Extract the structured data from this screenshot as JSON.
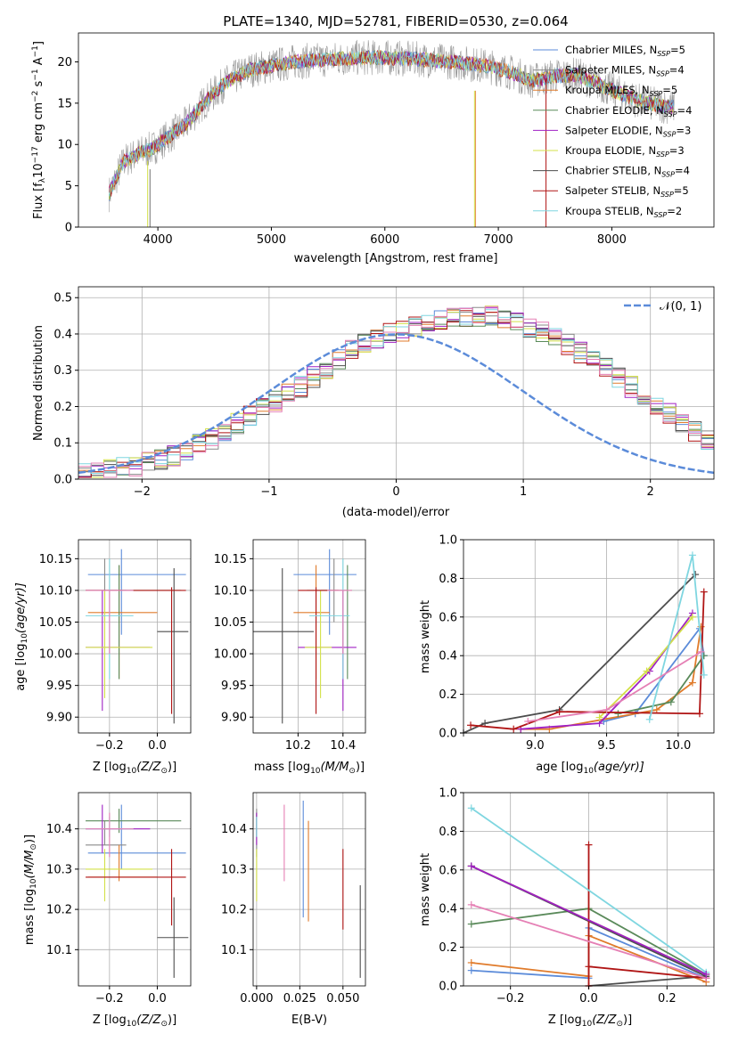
{
  "title": "PLATE=1340, MJD=52781, FIBERID=0530, z=0.064",
  "colors": {
    "Chabrier MILES": "#5b8bd9",
    "Salpeter MILES": "#8a8a8a",
    "Kroupa MILES": "#e07b2b",
    "Chabrier ELODIE": "#5a8a5a",
    "Salpeter ELODIE": "#a021c4",
    "Kroupa ELODIE": "#d3e048",
    "Chabrier STELIB": "#4d4d4d",
    "Salpeter STELIB": "#b01515",
    "Kroupa STELIB": "#7fd6e0",
    "pink": "#e580b5",
    "normal": "#5b8bd9"
  },
  "chart_data": [
    {
      "id": "spectrum",
      "type": "line",
      "xlabel": "wavelength [Angstrom, rest frame]",
      "ylabel_main": "Flux [f",
      "ylabel_rest": "10",
      "ylabel_unit": " erg cm",
      "ylabel_unit2": " s",
      "ylabel_unit3": " A",
      "ylabel_sub": "λ",
      "ylabel_exp1": "−17",
      "ylabel_exp2": "−2",
      "ylabel_exp3": "−1",
      "ylabel_close": "]",
      "xlim": [
        3300,
        8900
      ],
      "ylim": [
        0,
        23.5
      ],
      "xticks": [
        4000,
        5000,
        6000,
        7000,
        8000
      ],
      "yticks": [
        0,
        5,
        10,
        15,
        20
      ],
      "legend_position": "top-right",
      "legend": [
        {
          "label": "Chabrier MILES, N",
          "sub": "SSP",
          "val": "=5"
        },
        {
          "label": "Salpeter MILES, N",
          "sub": "SSP",
          "val": "=4"
        },
        {
          "label": "Kroupa MILES, N",
          "sub": "SSP",
          "val": "=5"
        },
        {
          "label": "Chabrier ELODIE, N",
          "sub": "SSP",
          "val": "=4"
        },
        {
          "label": "Salpeter ELODIE, N",
          "sub": "SSP",
          "val": "=3"
        },
        {
          "label": "Kroupa ELODIE, N",
          "sub": "SSP",
          "val": "=3"
        },
        {
          "label": "Chabrier STELIB, N",
          "sub": "SSP",
          "val": "=4"
        },
        {
          "label": "Salpeter STELIB, N",
          "sub": "SSP",
          "val": "=5"
        },
        {
          "label": "Kroupa STELIB, N",
          "sub": "SSP",
          "val": "=2"
        }
      ],
      "continuum": [
        [
          3570,
          4
        ],
        [
          3700,
          8
        ],
        [
          3850,
          9
        ],
        [
          3950,
          9.5
        ],
        [
          4100,
          11
        ],
        [
          4250,
          12.5
        ],
        [
          4400,
          15
        ],
        [
          4600,
          17.5
        ],
        [
          4800,
          19
        ],
        [
          5000,
          19.5
        ],
        [
          5200,
          20
        ],
        [
          5500,
          20.3
        ],
        [
          5800,
          20.5
        ],
        [
          6000,
          20.5
        ],
        [
          6300,
          20.3
        ],
        [
          6600,
          20
        ],
        [
          6900,
          19.5
        ],
        [
          7100,
          18.8
        ],
        [
          7300,
          17.7
        ],
        [
          7500,
          18.3
        ],
        [
          7700,
          18.4
        ],
        [
          7900,
          17.2
        ],
        [
          8100,
          16
        ],
        [
          8300,
          15
        ],
        [
          8400,
          14.8
        ],
        [
          8550,
          14.5
        ]
      ]
    },
    {
      "id": "residuals",
      "type": "histogram",
      "xlabel": "(data-model)/error",
      "ylabel": "Normed distribution",
      "xlim": [
        -2.5,
        2.5
      ],
      "ylim": [
        0,
        0.53
      ],
      "xticks": [
        -2,
        -1,
        0,
        1,
        2
      ],
      "yticks": [
        0.0,
        0.1,
        0.2,
        0.3,
        0.4,
        0.5
      ],
      "legend_label": "𝒩(0, 1)",
      "legend_position": "top-right",
      "bin_width": 0.1,
      "bin_start": -2.5,
      "base": [
        0.015,
        0.02,
        0.025,
        0.03,
        0.035,
        0.045,
        0.055,
        0.065,
        0.08,
        0.095,
        0.11,
        0.13,
        0.155,
        0.175,
        0.195,
        0.215,
        0.235,
        0.255,
        0.28,
        0.305,
        0.33,
        0.355,
        0.375,
        0.39,
        0.4,
        0.41,
        0.42,
        0.43,
        0.44,
        0.445,
        0.45,
        0.45,
        0.45,
        0.44,
        0.43,
        0.42,
        0.405,
        0.39,
        0.37,
        0.35,
        0.33,
        0.305,
        0.28,
        0.255,
        0.23,
        0.205,
        0.18,
        0.155,
        0.13,
        0.11
      ]
    },
    {
      "id": "age_vs_Z",
      "type": "errorbar",
      "xlabel": "Z [log",
      "xlabel_sub": "10",
      "xlabel_rest": "(Z/Z",
      "xlabel_sun": "⊙",
      "xlabel_close": ")]",
      "ylabel": "age  [log",
      "ylabel_sub": "10",
      "ylabel_rest": "(age/yr)]",
      "xlim": [
        -0.33,
        0.14
      ],
      "ylim": [
        9.875,
        10.18
      ],
      "xticks": [
        -0.2,
        0.0
      ],
      "yticks": [
        9.9,
        9.95,
        10.0,
        10.05,
        10.1,
        10.15
      ]
    },
    {
      "id": "age_vs_mass",
      "type": "errorbar",
      "xlabel": "mass [log",
      "xlabel_sub": "10",
      "xlabel_rest": "(M/M",
      "xlabel_sun": "⊙",
      "xlabel_close": ")]",
      "xlim": [
        10.0,
        10.5
      ],
      "ylim": [
        9.875,
        10.18
      ],
      "xticks": [
        10.2,
        10.4
      ],
      "yticks": [
        9.9,
        9.95,
        10.0,
        10.05,
        10.1,
        10.15
      ]
    },
    {
      "id": "weight_vs_age",
      "type": "line",
      "xlabel": "age  [log",
      "xlabel_sub": "10",
      "xlabel_rest": "(age/yr)]",
      "ylabel": "mass weight",
      "xlim": [
        8.5,
        10.25
      ],
      "ylim": [
        0,
        1.0
      ],
      "xticks": [
        9.0,
        9.5,
        10.0
      ],
      "yticks": [
        0.0,
        0.2,
        0.4,
        0.6,
        0.8,
        1.0
      ]
    },
    {
      "id": "mass_vs_Z",
      "type": "errorbar",
      "xlabel": "Z [log",
      "xlabel_sub": "10",
      "xlabel_rest": "(Z/Z",
      "xlabel_sun": "⊙",
      "xlabel_close": ")]",
      "ylabel": "mass [log",
      "ylabel_sub": "10",
      "ylabel_rest": "(M/M",
      "ylabel_sun": "⊙",
      "ylabel_close": ")]",
      "xlim": [
        -0.33,
        0.14
      ],
      "ylim": [
        10.01,
        10.49
      ],
      "xticks": [
        -0.2,
        0.0
      ],
      "yticks": [
        10.1,
        10.2,
        10.3,
        10.4
      ]
    },
    {
      "id": "mass_vs_ebv",
      "type": "errorbar",
      "xlabel": "E(B-V)",
      "xlim": [
        -0.002,
        0.063
      ],
      "ylim": [
        10.01,
        10.49
      ],
      "xticks": [
        0.0,
        0.025,
        0.05
      ],
      "yticks": [
        10.1,
        10.2,
        10.3,
        10.4
      ]
    },
    {
      "id": "weight_vs_Z",
      "type": "line",
      "xlabel": "Z [log",
      "xlabel_sub": "10",
      "xlabel_rest": "(Z/Z",
      "xlabel_sun": "⊙",
      "xlabel_close": ")]",
      "ylabel": "mass weight",
      "xlim": [
        -0.32,
        0.32
      ],
      "ylim": [
        0,
        1.0
      ],
      "xticks": [
        -0.2,
        0.0,
        0.2
      ],
      "yticks": [
        0.0,
        0.2,
        0.4,
        0.6,
        0.8,
        1.0
      ]
    }
  ],
  "points": [
    {
      "c": "#5b8bd9",
      "Z": -0.15,
      "zl": -0.29,
      "zh": 0.12,
      "age": 10.125,
      "al": 10.03,
      "ah": 10.165,
      "m": 10.34,
      "ml": 10.18,
      "mh": 10.46,
      "mzl": -0.29,
      "mzh": 0.12,
      "mml": 10.3,
      "mmh": 10.46,
      "ebv": 0.027,
      "el": 10.18,
      "eh": 10.47
    },
    {
      "c": "#8a8a8a",
      "Z": -0.22,
      "zl": -0.3,
      "zh": -0.13,
      "age": 10.1,
      "al": 10.05,
      "ah": 10.15,
      "m": 10.36,
      "ml": 10.3,
      "mh": 10.44,
      "mzl": -0.3,
      "mzh": -0.13,
      "mml": 10.36,
      "mmh": 10.42,
      "ebv": 0.0,
      "el": 10.33,
      "eh": 10.45
    },
    {
      "c": "#e07b2b",
      "Z": -0.16,
      "zl": -0.29,
      "zh": 0.0,
      "age": 10.065,
      "al": 9.96,
      "ah": 10.14,
      "m": 10.28,
      "ml": 10.18,
      "mh": 10.34,
      "mzl": -0.29,
      "mzh": 0.0,
      "mml": 10.27,
      "mmh": 10.36,
      "ebv": 0.03,
      "el": 10.17,
      "eh": 10.42
    },
    {
      "c": "#5a8a5a",
      "Z": -0.16,
      "zl": -0.3,
      "zh": 0.1,
      "age": 10.1,
      "al": 9.96,
      "ah": 10.14,
      "m": 10.42,
      "ml": 10.24,
      "mh": 10.42,
      "mzl": -0.3,
      "mzh": 0.1,
      "mml": 10.39,
      "mmh": 10.45,
      "ebv": 0.0,
      "el": 10.38,
      "eh": 10.44
    },
    {
      "c": "#a021c4",
      "Z": -0.23,
      "zl": -0.3,
      "zh": -0.03,
      "age": 10.01,
      "al": 9.91,
      "ah": 10.1,
      "m": 10.4,
      "ml": 10.2,
      "mh": 10.46,
      "mzl": -0.3,
      "mzh": -0.03,
      "mml": 10.34,
      "mmh": 10.46,
      "ebv": 0.0,
      "el": 10.36,
      "eh": 10.44
    },
    {
      "c": "#d3e048",
      "Z": -0.22,
      "zl": -0.3,
      "zh": -0.02,
      "age": 10.01,
      "al": 9.93,
      "ah": 10.1,
      "m": 10.3,
      "ml": 10.23,
      "mh": 10.35,
      "mzl": -0.3,
      "mzh": -0.02,
      "mml": 10.22,
      "mmh": 10.35,
      "ebv": 0.0,
      "el": 10.22,
      "eh": 10.35
    },
    {
      "c": "#4d4d4d",
      "Z": 0.07,
      "zl": 0.0,
      "zh": 0.13,
      "age": 10.035,
      "al": 9.89,
      "ah": 10.135,
      "m": 10.13,
      "ml": 10.0,
      "mh": 10.27,
      "mzl": 0.0,
      "mzh": 0.13,
      "mml": 10.03,
      "mmh": 10.23,
      "ebv": 0.06,
      "el": 10.03,
      "eh": 10.26
    },
    {
      "c": "#b01515",
      "Z": 0.06,
      "zl": -0.3,
      "zh": 0.12,
      "age": 10.1,
      "al": 9.905,
      "ah": 10.105,
      "m": 10.28,
      "ml": 10.2,
      "mh": 10.38,
      "mzl": -0.3,
      "mzh": 0.12,
      "mml": 10.16,
      "mmh": 10.35,
      "ebv": 0.05,
      "el": 10.15,
      "eh": 10.35
    },
    {
      "c": "#7fd6e0",
      "Z": -0.2,
      "zl": -0.3,
      "zh": -0.1,
      "age": 10.06,
      "al": 9.96,
      "ah": 10.15,
      "m": 10.4,
      "ml": 10.25,
      "mh": 10.43,
      "mzl": -0.3,
      "mzh": -0.1,
      "mml": 10.38,
      "mmh": 10.43,
      "ebv": 0.0,
      "el": 10.38,
      "eh": 10.43
    },
    {
      "c": "#e580b5",
      "Z": -0.2,
      "zl": -0.3,
      "zh": -0.1,
      "age": 10.1,
      "al": 10.0,
      "ah": 10.1,
      "m": 10.4,
      "ml": 10.33,
      "mh": 10.44,
      "mzl": -0.3,
      "mzh": -0.1,
      "mml": 10.33,
      "mmh": 10.44,
      "ebv": 0.016,
      "el": 10.27,
      "eh": 10.46
    }
  ],
  "weights_age": [
    {
      "c": "#5b8bd9",
      "pts": [
        [
          9.48,
          0.06
        ],
        [
          9.7,
          0.1
        ],
        [
          10.15,
          0.54
        ],
        [
          10.18,
          0.4
        ]
      ]
    },
    {
      "c": "#e07b2b",
      "pts": [
        [
          8.9,
          0.02
        ],
        [
          9.1,
          0.02
        ],
        [
          9.85,
          0.12
        ],
        [
          10.1,
          0.26
        ],
        [
          10.16,
          0.55
        ]
      ]
    },
    {
      "c": "#5a8a5a",
      "pts": [
        [
          9.58,
          0.1
        ],
        [
          9.95,
          0.16
        ],
        [
          10.18,
          0.4
        ]
      ]
    },
    {
      "c": "#a021c4",
      "pts": [
        [
          8.9,
          0.02
        ],
        [
          9.45,
          0.05
        ],
        [
          9.8,
          0.32
        ],
        [
          10.1,
          0.62
        ]
      ]
    },
    {
      "c": "#d3e048",
      "pts": [
        [
          9.45,
          0.08
        ],
        [
          9.78,
          0.32
        ],
        [
          10.1,
          0.6
        ]
      ]
    },
    {
      "c": "#4d4d4d",
      "pts": [
        [
          8.5,
          0.0
        ],
        [
          8.65,
          0.05
        ],
        [
          9.17,
          0.12
        ],
        [
          10.12,
          0.82
        ]
      ]
    },
    {
      "c": "#b01515",
      "pts": [
        [
          8.55,
          0.04
        ],
        [
          8.85,
          0.02
        ],
        [
          9.17,
          0.11
        ],
        [
          10.15,
          0.1
        ],
        [
          10.18,
          0.73
        ]
      ]
    },
    {
      "c": "#7fd6e0",
      "pts": [
        [
          9.8,
          0.07
        ],
        [
          10.1,
          0.92
        ],
        [
          10.18,
          0.3
        ]
      ]
    },
    {
      "c": "#e580b5",
      "pts": [
        [
          8.95,
          0.06
        ],
        [
          9.5,
          0.12
        ],
        [
          10.16,
          0.42
        ]
      ]
    }
  ],
  "weights_Z": [
    {
      "c": "#5b8bd9",
      "pts": [
        [
          -0.3,
          0.08
        ],
        [
          0.0,
          0.04
        ],
        [
          0.0,
          0.3
        ],
        [
          0.3,
          0.04
        ]
      ]
    },
    {
      "c": "#e07b2b",
      "pts": [
        [
          -0.3,
          0.12
        ],
        [
          0.0,
          0.05
        ],
        [
          0.0,
          0.26
        ],
        [
          0.3,
          0.02
        ]
      ]
    },
    {
      "c": "#5a8a5a",
      "pts": [
        [
          -0.3,
          0.32
        ],
        [
          0.0,
          0.4
        ],
        [
          0.3,
          0.06
        ]
      ]
    },
    {
      "c": "#d3e048",
      "pts": [
        [
          -0.3,
          0.62
        ],
        [
          0.3,
          0.06
        ]
      ]
    },
    {
      "c": "#4d4d4d",
      "pts": [
        [
          -0.3,
          0.62
        ],
        [
          0.3,
          0.05
        ],
        [
          0.0,
          0.0
        ]
      ]
    },
    {
      "c": "#b01515",
      "pts": [
        [
          0.0,
          0.0
        ],
        [
          0.0,
          0.73
        ],
        [
          0.0,
          0.1
        ],
        [
          0.3,
          0.04
        ]
      ]
    },
    {
      "c": "#7fd6e0",
      "pts": [
        [
          -0.3,
          0.92
        ],
        [
          0.3,
          0.07
        ]
      ]
    },
    {
      "c": "#e580b5",
      "pts": [
        [
          -0.3,
          0.42
        ],
        [
          0.3,
          0.04
        ]
      ]
    },
    {
      "c": "#a021c4",
      "pts": [
        [
          -0.3,
          0.62
        ],
        [
          0.3,
          0.06
        ]
      ]
    }
  ]
}
